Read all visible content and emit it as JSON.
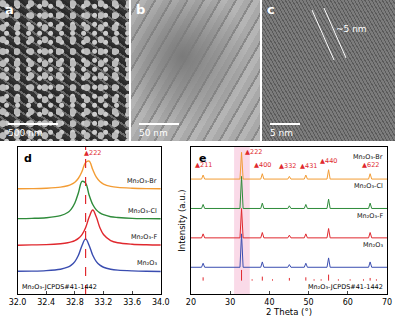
{
  "images": [
    {
      "label": "a",
      "scale_bar": "500 nm"
    },
    {
      "label": "b",
      "scale_bar": "50 nm"
    },
    {
      "label": "c",
      "scale_bar": "5 nm",
      "annotation": "~5 nm"
    }
  ],
  "chart_data": [
    {
      "type": "line",
      "panel": "d",
      "x": [
        32.0,
        32.2,
        32.4,
        32.6,
        32.7,
        32.75,
        32.8,
        32.85,
        32.9,
        32.95,
        33.0,
        33.05,
        33.1,
        33.15,
        33.2,
        33.3,
        33.4,
        33.6,
        33.8,
        34.0
      ],
      "series": [
        {
          "name": "Mn₂O₃",
          "color": "#3a4db0",
          "values": [
            5.3,
            5.4,
            5.8,
            6.9,
            8.4,
            10,
            12.7,
            17.5,
            25,
            30,
            25,
            17.5,
            12.7,
            10,
            8.4,
            6.9,
            6.2,
            5.6,
            5.3,
            5.2
          ]
        },
        {
          "name": "Mn₂O₃-F",
          "color": "#e0282e",
          "values": [
            25.2,
            25.4,
            25.6,
            26.3,
            27.0,
            27.7,
            28.7,
            30.4,
            33.3,
            38.5,
            46.6,
            52,
            46.6,
            38.5,
            33.3,
            28.7,
            27.0,
            25.9,
            25.5,
            25.3
          ]
        },
        {
          "name": "Mn₂O₃-Cl",
          "color": "#2e8b3a",
          "values": [
            45.4,
            45.6,
            46.1,
            47.7,
            50.1,
            52.7,
            57.3,
            65.1,
            73.8,
            72.5,
            63.3,
            56.2,
            52.1,
            49.8,
            48.4,
            46.9,
            46.3,
            45.6,
            45.4,
            45.3
          ]
        },
        {
          "name": "Mn₂O₃-Br",
          "color": "#f39c34",
          "values": [
            68.2,
            68.3,
            68.6,
            69.4,
            70.5,
            71.5,
            73.2,
            76.2,
            81.4,
            88.2,
            89.2,
            82.8,
            77.0,
            73.7,
            71.8,
            70.0,
            69.2,
            68.6,
            68.3,
            68.2
          ]
        }
      ],
      "reference_x": 32.95,
      "reference_label": "Mn₂O₃-JCPDS#41-1442",
      "annotations": [
        {
          "text": "▲222",
          "x": 33.05,
          "y": 91
        }
      ],
      "xlim": [
        32.0,
        34.0
      ],
      "xticks": [
        {
          "value": 32.0,
          "label": "32.0"
        },
        {
          "value": 32.4,
          "label": "32.4"
        },
        {
          "value": 32.8,
          "label": "32.8"
        },
        {
          "value": 33.2,
          "label": "33.2"
        },
        {
          "value": 33.6,
          "label": "33.6"
        },
        {
          "value": 34.0,
          "label": "34.0"
        }
      ],
      "ylim": [
        -12,
        100
      ],
      "tick_labels": "x",
      "grid": false
    },
    {
      "type": "line",
      "panel": "e",
      "x_label": "2 Theta (°)",
      "y_label": "Intensity (a.u.)",
      "x": [
        20,
        22.7,
        23.1,
        23.5,
        32.5,
        32.9,
        33.3,
        37.8,
        38.2,
        38.6,
        44.7,
        45.1,
        45.5,
        48.9,
        49.3,
        49.7,
        54.7,
        55.1,
        55.5,
        65.3,
        65.7,
        66.1,
        70
      ],
      "series": [
        {
          "name": "Mn₂O₃",
          "color": "#3a4db0",
          "values": [
            10,
            10,
            13,
            10,
            10,
            35,
            10,
            10,
            14,
            10,
            10,
            12,
            10,
            10,
            13,
            10,
            10,
            17,
            10,
            10,
            14,
            10,
            10
          ]
        },
        {
          "name": "Mn₂O₃-F",
          "color": "#e0282e",
          "values": [
            32,
            32,
            35,
            32,
            32,
            54,
            32,
            32,
            36,
            32,
            32,
            34,
            32,
            32,
            35,
            32,
            32,
            39,
            32,
            32,
            36,
            32,
            32
          ]
        },
        {
          "name": "Mn₂O₃-Cl",
          "color": "#2e8b3a",
          "values": [
            54,
            54,
            57,
            54,
            54,
            78,
            54,
            54,
            58,
            54,
            54,
            56,
            54,
            54,
            57,
            54,
            54,
            61,
            54,
            54,
            58,
            54,
            54
          ]
        },
        {
          "name": "Mn₂O₃-Br",
          "color": "#f39c34",
          "values": [
            76,
            76,
            79,
            76,
            76,
            96,
            76,
            76,
            80,
            76,
            76,
            78,
            76,
            76,
            79,
            76,
            76,
            83,
            76,
            76,
            80,
            76,
            76
          ]
        }
      ],
      "reference_label": "Mn₂O₃-JCPDS#41-1442",
      "reference_color": "#e0282e",
      "reference_base": 0,
      "reference_x": [
        23.1,
        32.9,
        35.6,
        38.2,
        40.8,
        45.1,
        49.3,
        51.4,
        53.2,
        55.1,
        57.6,
        60.6,
        64.0,
        65.7,
        67.3
      ],
      "reference_values": [
        2.5,
        8,
        1,
        3,
        1,
        2,
        2.5,
        1,
        1,
        4.5,
        1,
        1,
        1,
        2,
        1
      ],
      "highlight": [
        31,
        35
      ],
      "annotations": [
        {
          "text": "▲211",
          "x": 23.1,
          "y": 82
        },
        {
          "text": "▲222",
          "x": 36,
          "y": 92
        },
        {
          "text": "▲400",
          "x": 38.2,
          "y": 82
        },
        {
          "text": "▲332",
          "x": 44.6,
          "y": 81
        },
        {
          "text": "▲431",
          "x": 49.9,
          "y": 81
        },
        {
          "text": "▲440",
          "x": 55.1,
          "y": 85
        },
        {
          "text": "▲622",
          "x": 65.7,
          "y": 82
        }
      ],
      "xlim": [
        20,
        70
      ],
      "xticks": [
        20,
        30,
        40,
        50,
        60,
        70
      ],
      "ylim": [
        -10,
        100
      ],
      "tick_labels": "x",
      "grid": false
    }
  ]
}
